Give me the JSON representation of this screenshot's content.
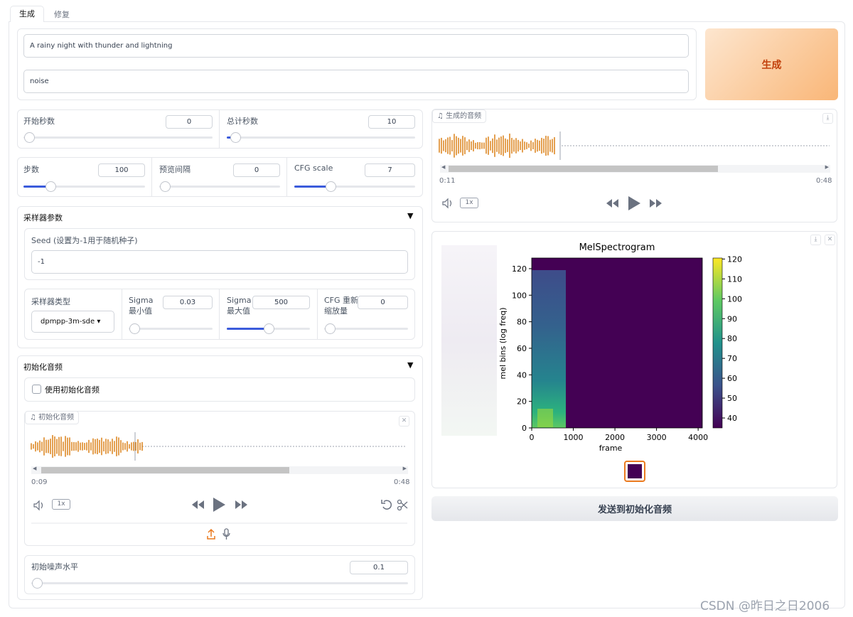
{
  "tabs": [
    "生成",
    "修复"
  ],
  "prompt": "A rainy night with thunder and lightning",
  "negative_prompt": "noise",
  "generate_button": "生成",
  "start_seconds": {
    "label": "开始秒数",
    "value": 0
  },
  "total_seconds": {
    "label": "总计秒数",
    "value": 10
  },
  "steps": {
    "label": "步数",
    "value": 100
  },
  "preview_interval": {
    "label": "预览间隔",
    "value": 0
  },
  "cfg_scale": {
    "label": "CFG scale",
    "value": 7
  },
  "sampler_params": {
    "title": "采样器参数",
    "seed_label": "Seed (设置为-1用于随机种子)",
    "seed": "-1",
    "sampler_type_label": "采样器类型",
    "sampler_type": "dpmpp-3m-sde",
    "sigma_min": {
      "label": "Sigma 最小值",
      "value": 0.03
    },
    "sigma_max": {
      "label": "Sigma 最大值",
      "value": 500
    },
    "cfg_rescale": {
      "label": "CFG 重新缩放量",
      "value": 0
    }
  },
  "init_audio": {
    "title": "初始化音频",
    "checkbox": "使用初始化音频",
    "player_label": "初始化音频",
    "current_time": "0:09",
    "duration": "0:48",
    "speed": "1x",
    "noise_level": {
      "label": "初始噪声水平",
      "value": 0.1
    }
  },
  "output_audio": {
    "label": "生成的音频",
    "current_time": "0:11",
    "duration": "0:48",
    "speed": "1x"
  },
  "spectrogram": {
    "title": "MelSpectrogram",
    "xlabel": "frame",
    "ylabel": "mel bins (log freq)",
    "xlim": [
      0,
      4100
    ],
    "xticks": [
      0,
      1000,
      2000,
      3000,
      4000
    ],
    "ylim": [
      0,
      128
    ],
    "yticks": [
      0,
      20,
      40,
      60,
      80,
      100,
      120
    ],
    "clim": [
      35,
      120.5
    ],
    "colorbar_ticks": [
      40,
      50,
      60,
      70,
      80,
      90,
      100,
      110,
      120
    ]
  },
  "send_button": "发送到初始化音频",
  "watermark": "CSDN @昨日之日2006"
}
